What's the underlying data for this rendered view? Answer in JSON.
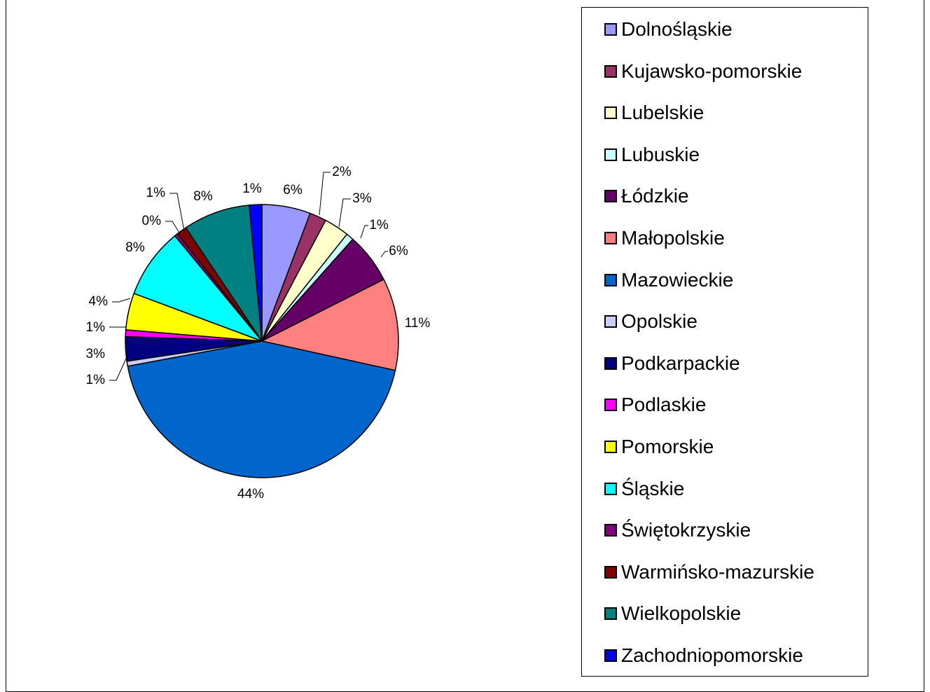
{
  "chart_data": {
    "type": "pie",
    "categories": [
      "Dolnośląskie",
      "Kujawsko-pomorskie",
      "Lubelskie",
      "Lubuskie",
      "Łódzkie",
      "Małopolskie",
      "Mazowieckie",
      "Opolskie",
      "Podkarpackie",
      "Podlaskie",
      "Pomorskie",
      "Śląskie",
      "Świętokrzyskie",
      "Warmińsko-mazurskie",
      "Wielkopolskie",
      "Zachodniopomorskie"
    ],
    "values": [
      5.8,
      2.0,
      3.0,
      0.9,
      6.0,
      11.0,
      44.0,
      0.6,
      2.9,
      0.8,
      4.4,
      8.4,
      0.4,
      1.2,
      8.0,
      1.5
    ],
    "value_labels": [
      "6%",
      "2%",
      "3%",
      "1%",
      "6%",
      "11%",
      "44%",
      "1%",
      "3%",
      "1%",
      "4%",
      "8%",
      "0%",
      "1%",
      "8%",
      "1%"
    ],
    "colors": [
      "#9999ff",
      "#993366",
      "#ffffcc",
      "#ccffff",
      "#660066",
      "#ff8080",
      "#0066cc",
      "#ccccff",
      "#000080",
      "#ff00ff",
      "#ffff00",
      "#00ffff",
      "#800080",
      "#800000",
      "#008080",
      "#0000ff"
    ],
    "legend_position": "right",
    "title": ""
  }
}
